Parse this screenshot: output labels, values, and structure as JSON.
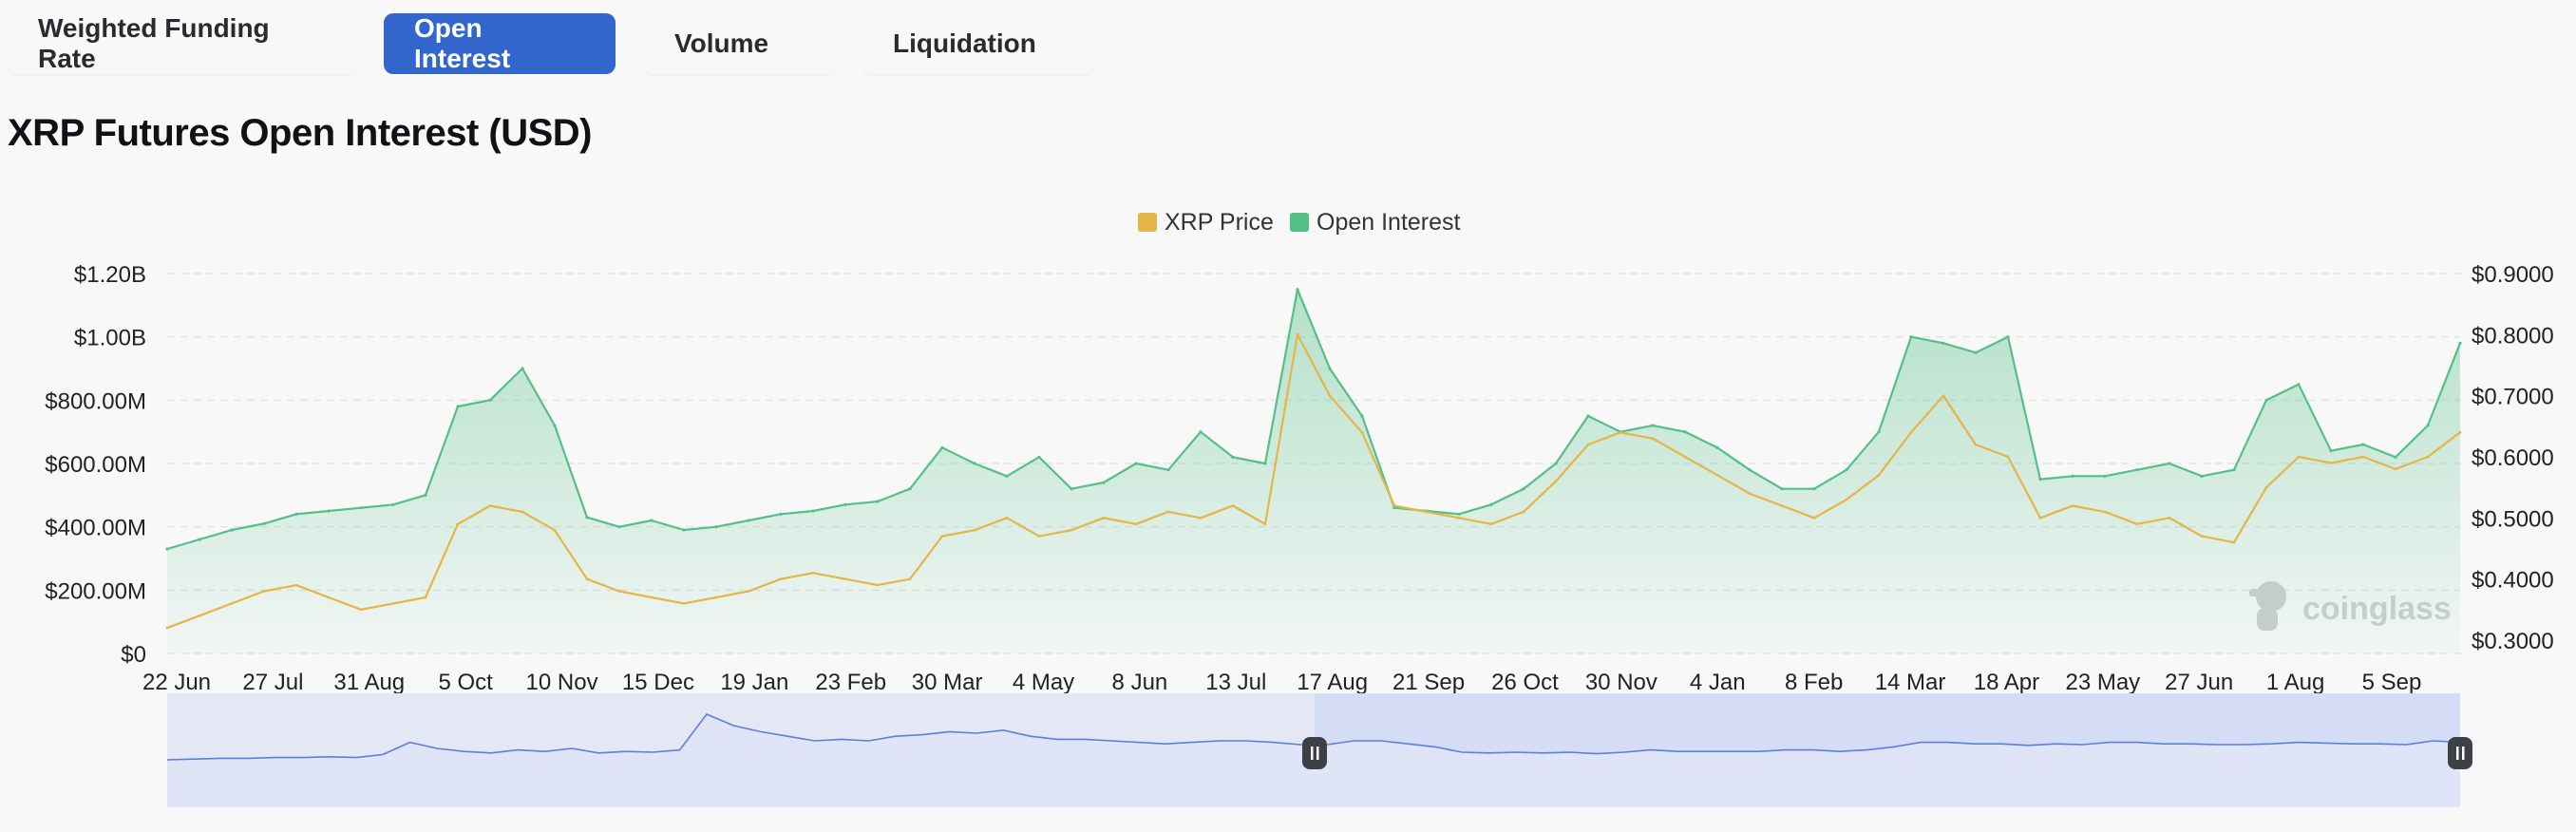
{
  "tabs": [
    {
      "label": "Weighted Funding Rate",
      "active": false
    },
    {
      "label": "Open Interest",
      "active": true
    },
    {
      "label": "Volume",
      "active": false
    },
    {
      "label": "Liquidation",
      "active": false
    }
  ],
  "title": "XRP Futures Open Interest (USD)",
  "watermark": "coinglass",
  "colors": {
    "accent": "#3366cc",
    "price": "#e5b548",
    "open_interest": "#54c087",
    "navigator_line": "#5b7fdb",
    "navigator_fill": "#e4e8f5",
    "navigator_selection": "#d5dcf5"
  },
  "chart_data": {
    "type": "area",
    "legend": {
      "position": "top-center",
      "entries": [
        "XRP Price",
        "Open Interest"
      ]
    },
    "grid": true,
    "x_tick_labels": [
      "22 Jun",
      "27 Jul",
      "31 Aug",
      "5 Oct",
      "10 Nov",
      "15 Dec",
      "19 Jan",
      "23 Feb",
      "30 Mar",
      "4 May",
      "8 Jun",
      "13 Jul",
      "17 Aug",
      "21 Sep",
      "26 Oct",
      "30 Nov",
      "4 Jan",
      "8 Feb",
      "14 Mar",
      "18 Apr",
      "23 May",
      "27 Jun",
      "1 Aug",
      "5 Sep"
    ],
    "y_left": {
      "label": "",
      "ticks": [
        "$0",
        "$200.00M",
        "$400.00M",
        "$600.00M",
        "$800.00M",
        "$1.00B",
        "$1.20B"
      ],
      "range": [
        0,
        1200000000
      ]
    },
    "y_right": {
      "label": "",
      "ticks": [
        "$0.3000",
        "$0.4000",
        "$0.5000",
        "$0.6000",
        "$0.7000",
        "$0.8000",
        "$0.9000"
      ],
      "range": [
        0.3,
        0.9
      ]
    },
    "series": [
      {
        "name": "Open Interest",
        "axis": "left",
        "type": "area",
        "x_start": "22 Jun",
        "x_end": "5 Sep",
        "values": [
          330000000,
          360000000,
          390000000,
          410000000,
          440000000,
          450000000,
          460000000,
          470000000,
          500000000,
          780000000,
          800000000,
          900000000,
          720000000,
          430000000,
          400000000,
          420000000,
          390000000,
          400000000,
          420000000,
          440000000,
          450000000,
          470000000,
          480000000,
          520000000,
          650000000,
          600000000,
          560000000,
          620000000,
          520000000,
          540000000,
          600000000,
          580000000,
          700000000,
          620000000,
          600000000,
          1150000000,
          900000000,
          750000000,
          460000000,
          450000000,
          440000000,
          470000000,
          520000000,
          600000000,
          750000000,
          700000000,
          720000000,
          700000000,
          650000000,
          580000000,
          520000000,
          520000000,
          580000000,
          700000000,
          1000000000,
          980000000,
          950000000,
          1000000000,
          550000000,
          560000000,
          560000000,
          580000000,
          600000000,
          560000000,
          580000000,
          800000000,
          850000000,
          640000000,
          660000000,
          620000000,
          720000000,
          980000000
        ]
      },
      {
        "name": "XRP Price",
        "axis": "right",
        "type": "line",
        "x_start": "22 Jun",
        "x_end": "5 Sep",
        "values": [
          0.32,
          0.34,
          0.36,
          0.38,
          0.39,
          0.37,
          0.35,
          0.36,
          0.37,
          0.49,
          0.52,
          0.51,
          0.48,
          0.4,
          0.38,
          0.37,
          0.36,
          0.37,
          0.38,
          0.4,
          0.41,
          0.4,
          0.39,
          0.4,
          0.47,
          0.48,
          0.5,
          0.47,
          0.48,
          0.5,
          0.49,
          0.51,
          0.5,
          0.52,
          0.49,
          0.8,
          0.7,
          0.64,
          0.52,
          0.51,
          0.5,
          0.49,
          0.51,
          0.56,
          0.62,
          0.64,
          0.63,
          0.6,
          0.57,
          0.54,
          0.52,
          0.5,
          0.53,
          0.57,
          0.64,
          0.7,
          0.62,
          0.6,
          0.5,
          0.52,
          0.51,
          0.49,
          0.5,
          0.47,
          0.46,
          0.55,
          0.6,
          0.59,
          0.6,
          0.58,
          0.6,
          0.64
        ]
      }
    ],
    "navigator": {
      "type": "area",
      "selection": [
        "17 Aug",
        "5 Sep"
      ],
      "values": [
        0.35,
        0.36,
        0.37,
        0.37,
        0.38,
        0.38,
        0.39,
        0.38,
        0.42,
        0.58,
        0.5,
        0.46,
        0.44,
        0.48,
        0.46,
        0.5,
        0.44,
        0.46,
        0.45,
        0.48,
        0.95,
        0.8,
        0.72,
        0.66,
        0.6,
        0.62,
        0.6,
        0.66,
        0.68,
        0.72,
        0.7,
        0.74,
        0.66,
        0.62,
        0.62,
        0.6,
        0.58,
        0.56,
        0.58,
        0.6,
        0.6,
        0.58,
        0.55,
        0.55,
        0.6,
        0.6,
        0.56,
        0.52,
        0.45,
        0.44,
        0.45,
        0.44,
        0.45,
        0.43,
        0.45,
        0.48,
        0.46,
        0.46,
        0.46,
        0.46,
        0.48,
        0.48,
        0.46,
        0.48,
        0.52,
        0.58,
        0.58,
        0.56,
        0.56,
        0.54,
        0.56,
        0.55,
        0.58,
        0.58,
        0.56,
        0.56,
        0.55,
        0.55,
        0.56,
        0.58,
        0.57,
        0.56,
        0.56,
        0.55,
        0.6,
        0.58
      ]
    }
  }
}
